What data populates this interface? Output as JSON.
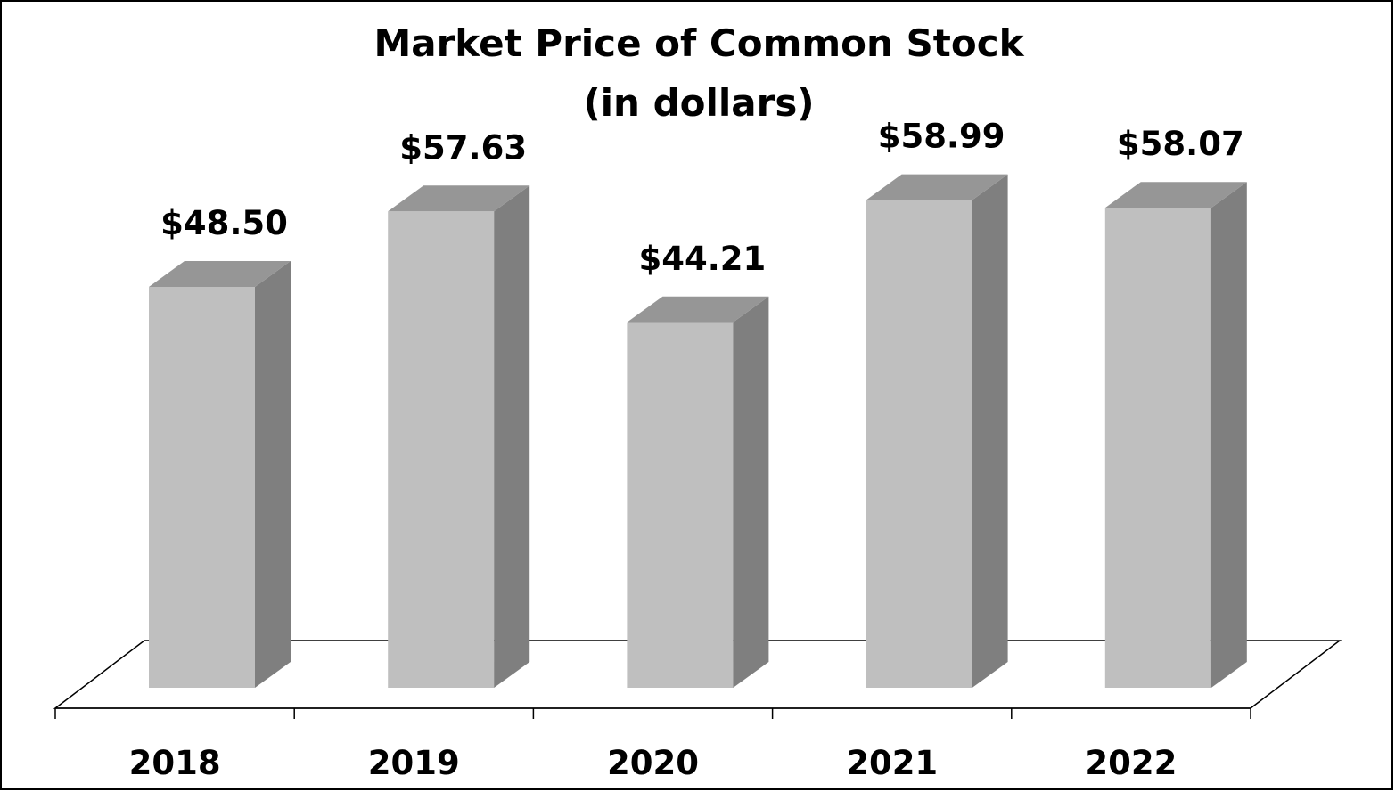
{
  "chart_data": {
    "type": "bar",
    "style": "3d-column",
    "title": "Market Price of Common Stock",
    "subtitle": "(in dollars)",
    "categories": [
      "2018",
      "2019",
      "2020",
      "2021",
      "2022"
    ],
    "values": [
      48.5,
      57.63,
      44.21,
      58.99,
      58.07
    ],
    "data_labels": [
      "$48.50",
      "$57.63",
      "$44.21",
      "$58.99",
      "$58.07"
    ],
    "xlabel": "",
    "ylabel": "",
    "ylim": [
      0,
      60
    ],
    "grid": false,
    "legend": "none",
    "colors": {
      "bar_front": "#bfbfbf",
      "bar_side": "#7f7f7f",
      "bar_top": "#969696",
      "floor_line": "#000000",
      "border": "#000000",
      "text": "#000000"
    }
  }
}
